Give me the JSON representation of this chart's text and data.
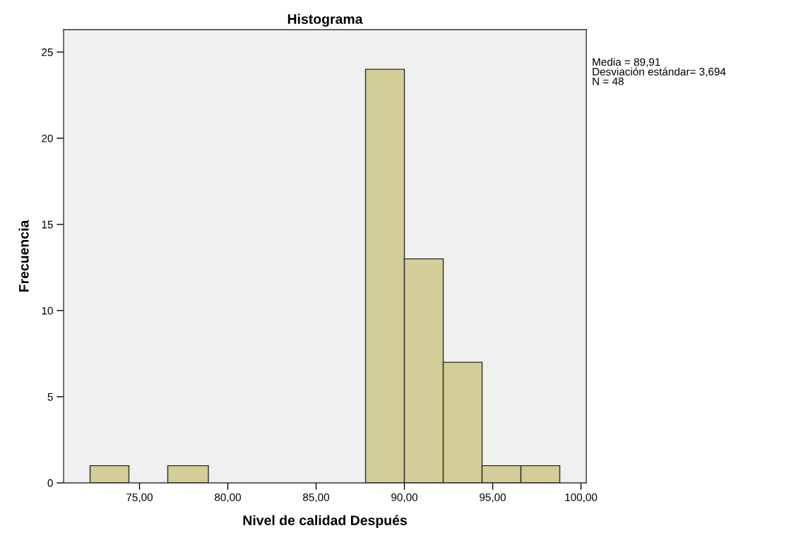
{
  "chart_data": {
    "type": "histogram",
    "title": "Histograma",
    "xlabel": "Nivel de calidad Después",
    "ylabel": "Frecuencia",
    "bins": [
      72.2,
      74.4,
      76.6,
      78.9,
      87.8,
      90.0,
      92.2,
      94.4,
      96.6,
      98.8
    ],
    "values": [
      1,
      0,
      1,
      0,
      24,
      13,
      7,
      1,
      1
    ],
    "color": "#d3ce97",
    "xlim": [
      70.7,
      100.3
    ],
    "ylim": [
      0,
      26.3
    ],
    "xticks": [
      {
        "value": 75,
        "label": "75,00"
      },
      {
        "value": 80,
        "label": "80,00"
      },
      {
        "value": 85,
        "label": "85,00"
      },
      {
        "value": 90,
        "label": "90,00"
      },
      {
        "value": 95,
        "label": "95,00"
      },
      {
        "value": 100,
        "label": "100,00"
      }
    ],
    "yticks": [
      0,
      5,
      10,
      15,
      20,
      25
    ],
    "grid": false,
    "annotations": [
      "Media = 89,91\nDesviación estándar= 3,694\nN = 48"
    ]
  }
}
